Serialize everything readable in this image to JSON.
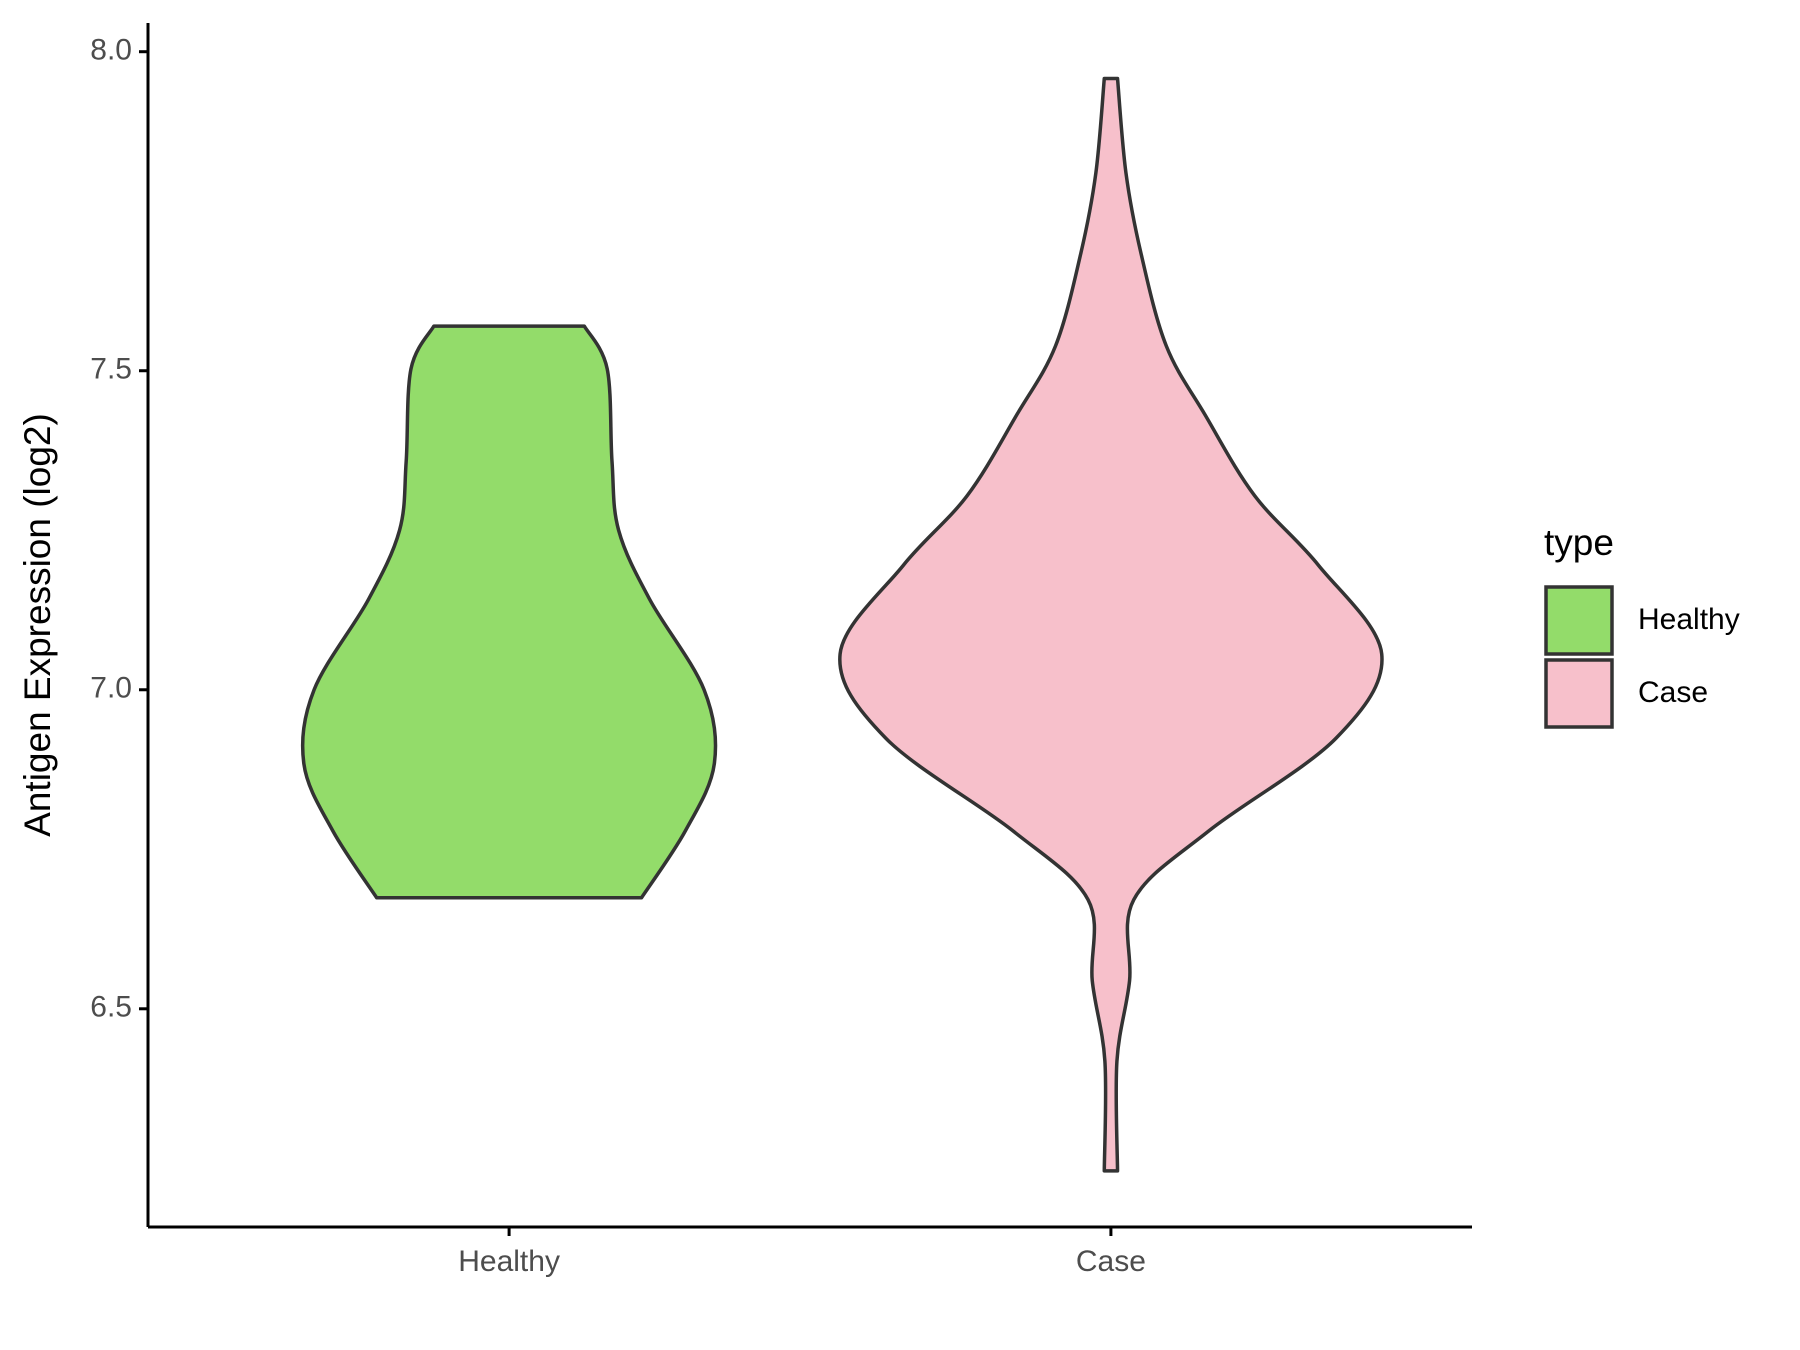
{
  "chart_data": {
    "type": "violin",
    "y_label": "Antigen Expression (log2)",
    "categories": [
      "Healthy",
      "Case"
    ],
    "legend_title": "type",
    "legend": "right",
    "outline_color": "#333333",
    "series": [
      {
        "name": "Healthy",
        "color": "#93dc6a",
        "y": [
          6.674,
          6.779,
          6.884,
          7.0,
          7.141,
          7.25,
          7.358,
          7.503,
          7.57
        ],
        "widths": [
          0.22,
          0.293,
          0.341,
          0.324,
          0.234,
          0.182,
          0.171,
          0.163,
          0.125
        ]
      },
      {
        "name": "Case",
        "color": "#f7c0cb",
        "y": [
          6.246,
          6.418,
          6.544,
          6.671,
          6.779,
          6.924,
          7.056,
          7.195,
          7.304,
          7.43,
          7.539,
          7.684,
          7.81,
          7.958
        ],
        "widths": [
          0.011,
          0.01,
          0.031,
          0.038,
          0.163,
          0.374,
          0.45,
          0.345,
          0.239,
          0.157,
          0.092,
          0.05,
          0.025,
          0.011
        ]
      }
    ],
    "ylim": [
      6.158,
      8.045
    ],
    "yticks": [
      6.5,
      {
        "value": 7,
        "label": "7.0"
      },
      7.5,
      {
        "value": 8,
        "label": "8.0"
      }
    ]
  }
}
